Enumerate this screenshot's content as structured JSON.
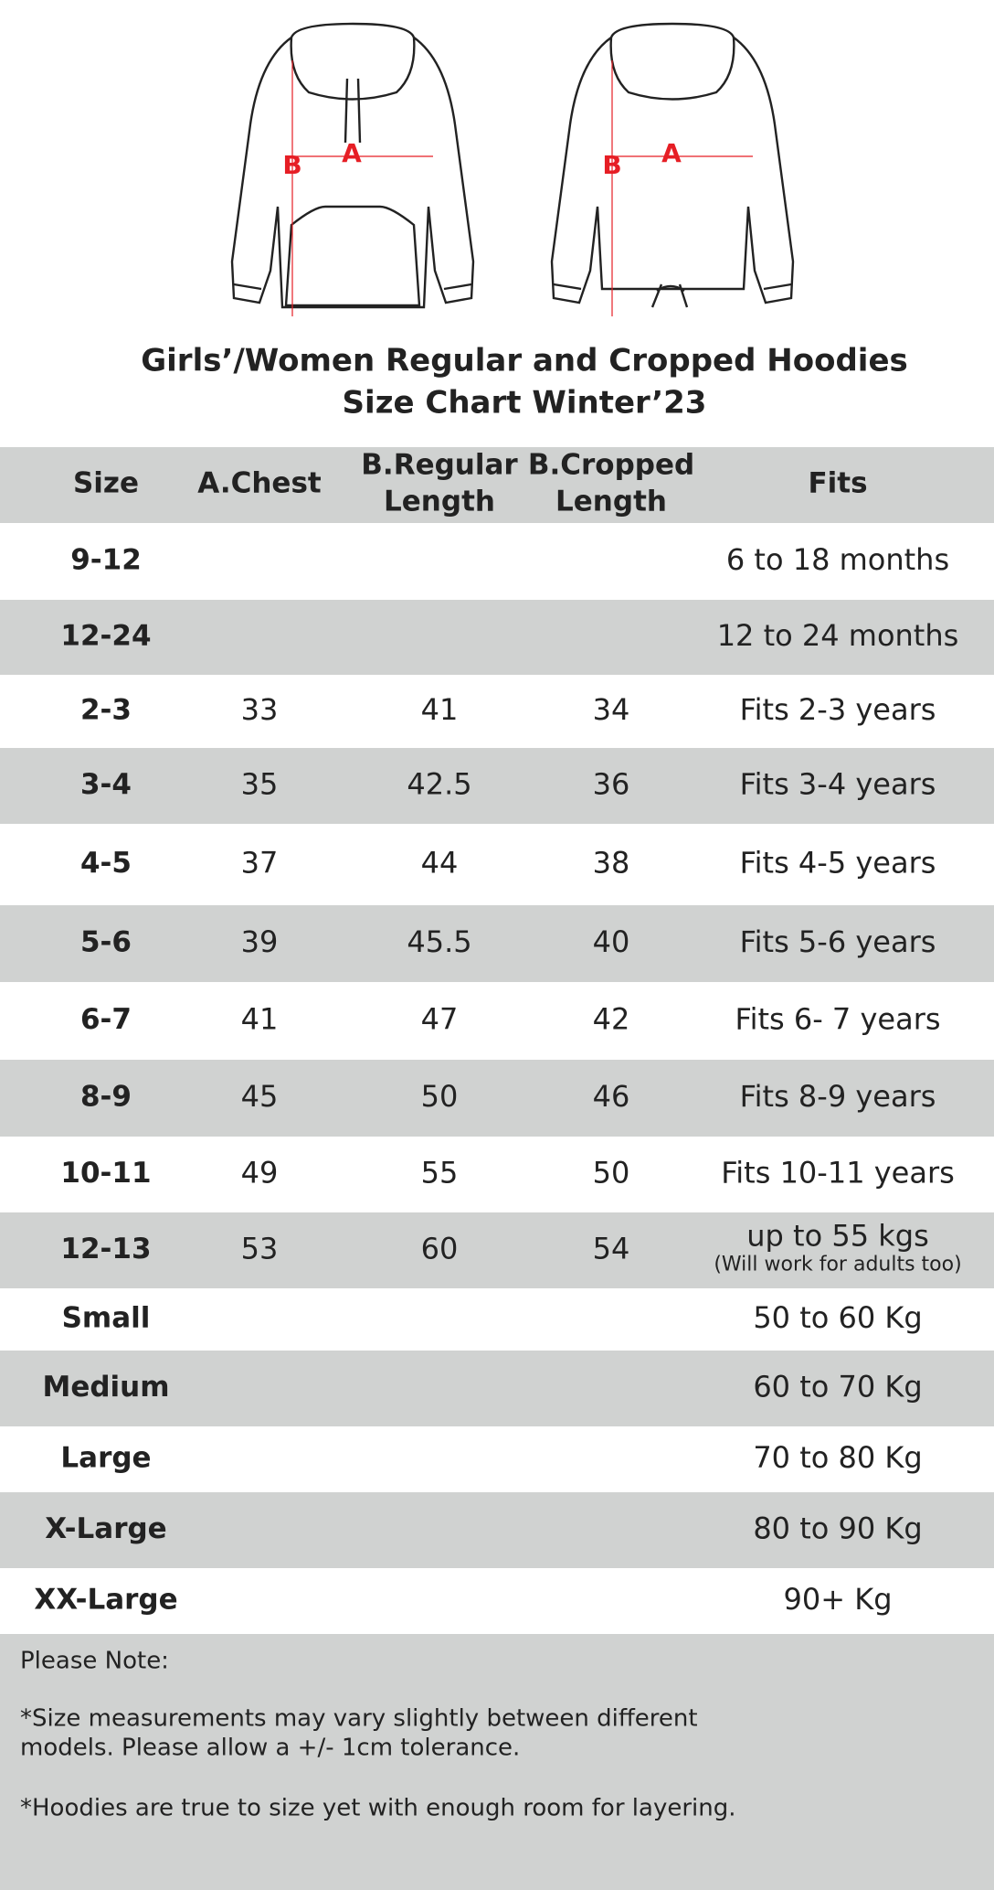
{
  "diagrams": [
    {
      "b": "B",
      "a": "A"
    },
    {
      "b": "B",
      "a": "A"
    }
  ],
  "header": {
    "title": [
      "Girls’/Women  Regular and Cropped Hoodies",
      "Size Chart Winter’23"
    ]
  },
  "table": {
    "columns": [
      [
        "Size"
      ],
      [
        "A.Chest"
      ],
      [
        "B.Regular",
        "Length"
      ],
      [
        "B.Cropped",
        "Length"
      ],
      [
        "Fits"
      ]
    ],
    "rows": [
      [
        "9-12",
        null,
        null,
        null,
        [
          "6 to 18 months"
        ]
      ],
      [
        "12-24",
        null,
        null,
        null,
        [
          "12 to 24 months"
        ]
      ],
      [
        "2-3",
        33,
        41,
        34,
        [
          "Fits 2-3 years"
        ]
      ],
      [
        "3-4",
        35,
        42.5,
        36,
        [
          "Fits 3-4 years"
        ]
      ],
      [
        "4-5",
        37,
        44,
        38,
        [
          "Fits 4-5 years"
        ]
      ],
      [
        "5-6",
        39,
        45.5,
        40,
        [
          "Fits 5-6 years"
        ]
      ],
      [
        "6-7",
        41,
        47,
        42,
        [
          "Fits 6- 7 years"
        ]
      ],
      [
        "8-9",
        45,
        50,
        46,
        [
          "Fits 8-9 years"
        ]
      ],
      [
        "10-11",
        49,
        55,
        50,
        [
          "Fits 10-11 years"
        ]
      ],
      [
        "12-13",
        53,
        60,
        54,
        [
          "up to 55 kgs",
          "(Will work for adults too)"
        ]
      ],
      [
        "Small",
        null,
        null,
        null,
        [
          "50 to 60 Kg"
        ]
      ],
      [
        "Medium",
        null,
        null,
        null,
        [
          "60 to 70 Kg"
        ]
      ],
      [
        "Large",
        null,
        null,
        null,
        [
          "70 to 80 Kg"
        ]
      ],
      [
        "X-Large",
        null,
        null,
        null,
        [
          "80 to 90 Kg"
        ]
      ],
      [
        "XX-Large",
        null,
        null,
        null,
        [
          "90+ Kg"
        ]
      ]
    ]
  },
  "notes": {
    "heading": "Please Note:",
    "paragraphs": [
      [
        "*Size measurements may vary slightly between different",
        "models. Please allow a +/- 1cm tolerance."
      ],
      [
        "*Hoodies are true to size yet with enough room for layering."
      ]
    ]
  }
}
